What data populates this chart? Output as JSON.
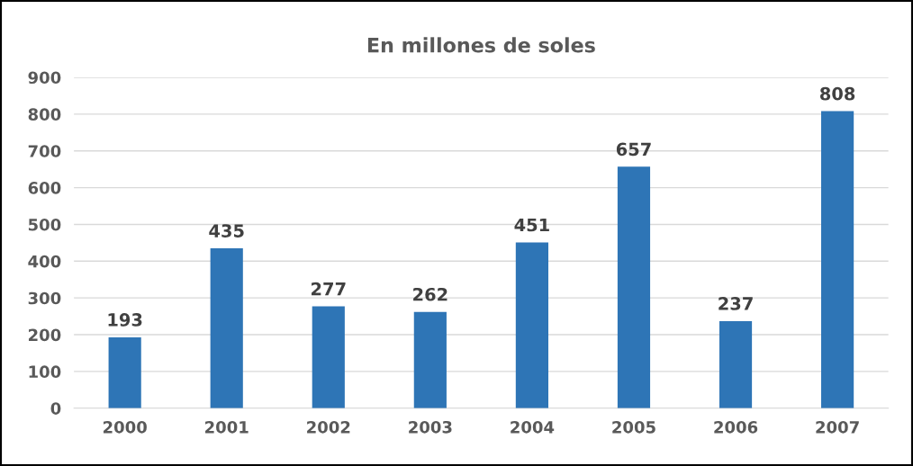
{
  "chart_data": {
    "type": "bar",
    "title": "En millones de soles",
    "categories": [
      "2000",
      "2001",
      "2002",
      "2003",
      "2004",
      "2005",
      "2006",
      "2007"
    ],
    "values": [
      193,
      435,
      277,
      262,
      451,
      657,
      237,
      808
    ],
    "color": "#2e75b6",
    "ylim": [
      0,
      900
    ],
    "yticks": [
      0,
      100,
      200,
      300,
      400,
      500,
      600,
      700,
      800,
      900
    ],
    "grid": "y",
    "data_labels": true,
    "legend": false
  }
}
